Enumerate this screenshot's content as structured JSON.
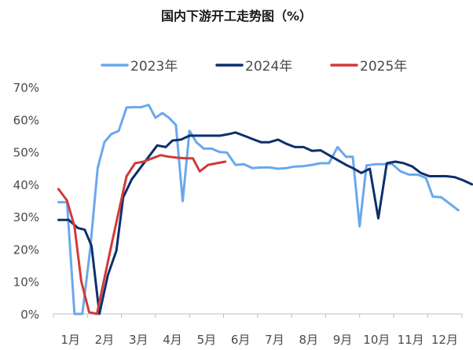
{
  "chart_data": {
    "type": "line",
    "title": "国内下游开工走势图（%）",
    "xlabel": "",
    "ylabel": "",
    "ylim": [
      0,
      70
    ],
    "yticks": [
      "0%",
      "10%",
      "20%",
      "30%",
      "40%",
      "50%",
      "60%",
      "70%"
    ],
    "ytick_values": [
      0,
      10,
      20,
      30,
      40,
      50,
      60,
      70
    ],
    "x_unit": "month",
    "xlim": [
      1,
      13
    ],
    "xticks": [
      "1月",
      "2月",
      "3月",
      "4月",
      "5月",
      "6月",
      "7月",
      "8月",
      "9月",
      "10月",
      "11月",
      "12月"
    ],
    "xtick_values": [
      1,
      2,
      3,
      4,
      5,
      6,
      7,
      8,
      9,
      10,
      11,
      12
    ],
    "grid": false,
    "legend": "top",
    "series": [
      {
        "name": "2023年",
        "color": "#6aa8ec",
        "points": [
          [
            1.15,
            34.5
          ],
          [
            1.4,
            34.5
          ],
          [
            1.62,
            0
          ],
          [
            1.85,
            0
          ],
          [
            2.08,
            20
          ],
          [
            2.3,
            45
          ],
          [
            2.5,
            53
          ],
          [
            2.7,
            55.5
          ],
          [
            2.92,
            56.5
          ],
          [
            3.15,
            63.7
          ],
          [
            3.35,
            63.8
          ],
          [
            3.58,
            63.8
          ],
          [
            3.8,
            64.5
          ],
          [
            4.0,
            60.5
          ],
          [
            4.2,
            62
          ],
          [
            4.4,
            60.5
          ],
          [
            4.6,
            58.3
          ],
          [
            4.8,
            34.8
          ],
          [
            5.0,
            56.5
          ],
          [
            5.2,
            53
          ],
          [
            5.42,
            51
          ],
          [
            5.65,
            51
          ],
          [
            5.88,
            50
          ],
          [
            6.1,
            49.8
          ],
          [
            6.35,
            46
          ],
          [
            6.6,
            46.2
          ],
          [
            6.85,
            45
          ],
          [
            7.1,
            45.2
          ],
          [
            7.35,
            45.2
          ],
          [
            7.6,
            44.8
          ],
          [
            7.85,
            45
          ],
          [
            8.1,
            45.5
          ],
          [
            8.35,
            45.6
          ],
          [
            8.6,
            46
          ],
          [
            8.85,
            46.5
          ],
          [
            9.1,
            46.5
          ],
          [
            9.35,
            51.5
          ],
          [
            9.6,
            48.5
          ],
          [
            9.8,
            48.5
          ],
          [
            10.0,
            27
          ],
          [
            10.2,
            45.8
          ],
          [
            10.45,
            46.2
          ],
          [
            10.7,
            46.2
          ],
          [
            10.95,
            46.3
          ],
          [
            11.2,
            44
          ],
          [
            11.45,
            43
          ],
          [
            11.7,
            43
          ],
          [
            11.95,
            42
          ],
          [
            12.15,
            36.2
          ],
          [
            12.4,
            36
          ],
          [
            12.65,
            34
          ],
          [
            12.9,
            32
          ]
        ]
      },
      {
        "name": "2024年",
        "color": "#0e2f6e",
        "points": [
          [
            1.15,
            29
          ],
          [
            1.45,
            29
          ],
          [
            1.72,
            26.5
          ],
          [
            1.92,
            26
          ],
          [
            2.12,
            21
          ],
          [
            2.35,
            0
          ],
          [
            2.6,
            12
          ],
          [
            2.85,
            19.5
          ],
          [
            3.05,
            36
          ],
          [
            3.3,
            41.5
          ],
          [
            3.55,
            45
          ],
          [
            3.8,
            48.5
          ],
          [
            4.05,
            52
          ],
          [
            4.3,
            51.5
          ],
          [
            4.5,
            53.5
          ],
          [
            4.75,
            53.8
          ],
          [
            5.0,
            55
          ],
          [
            5.3,
            55
          ],
          [
            5.6,
            55
          ],
          [
            5.9,
            55
          ],
          [
            6.15,
            55.5
          ],
          [
            6.35,
            56
          ],
          [
            6.6,
            55
          ],
          [
            6.85,
            54
          ],
          [
            7.1,
            53
          ],
          [
            7.35,
            53
          ],
          [
            7.6,
            53.8
          ],
          [
            7.85,
            52.5
          ],
          [
            8.1,
            51.5
          ],
          [
            8.35,
            51.5
          ],
          [
            8.6,
            50.3
          ],
          [
            8.85,
            50.5
          ],
          [
            9.1,
            49
          ],
          [
            9.35,
            47.5
          ],
          [
            9.6,
            46
          ],
          [
            9.8,
            45
          ],
          [
            10.05,
            43.5
          ],
          [
            10.3,
            44.8
          ],
          [
            10.55,
            29.5
          ],
          [
            10.8,
            46.5
          ],
          [
            11.05,
            47
          ],
          [
            11.3,
            46.5
          ],
          [
            11.55,
            45.5
          ],
          [
            11.8,
            43.5
          ],
          [
            12.05,
            42.5
          ],
          [
            12.3,
            42.5
          ],
          [
            12.55,
            42.5
          ],
          [
            12.8,
            42.2
          ],
          [
            13.05,
            41.2
          ],
          [
            13.3,
            40
          ]
        ]
      },
      {
        "name": "2025年",
        "color": "#d03a3a",
        "points": [
          [
            1.15,
            38.5
          ],
          [
            1.4,
            35
          ],
          [
            1.62,
            27
          ],
          [
            1.82,
            10
          ],
          [
            2.05,
            0.5
          ],
          [
            2.28,
            0
          ],
          [
            2.5,
            11
          ],
          [
            2.72,
            22
          ],
          [
            2.95,
            33
          ],
          [
            3.15,
            42.5
          ],
          [
            3.4,
            46.5
          ],
          [
            3.65,
            47
          ],
          [
            3.9,
            48
          ],
          [
            4.15,
            49
          ],
          [
            4.4,
            48.5
          ],
          [
            4.65,
            48.2
          ],
          [
            4.9,
            48
          ],
          [
            5.1,
            48
          ],
          [
            5.3,
            44
          ],
          [
            5.55,
            46
          ],
          [
            5.8,
            46.5
          ],
          [
            6.05,
            47
          ]
        ]
      }
    ]
  }
}
